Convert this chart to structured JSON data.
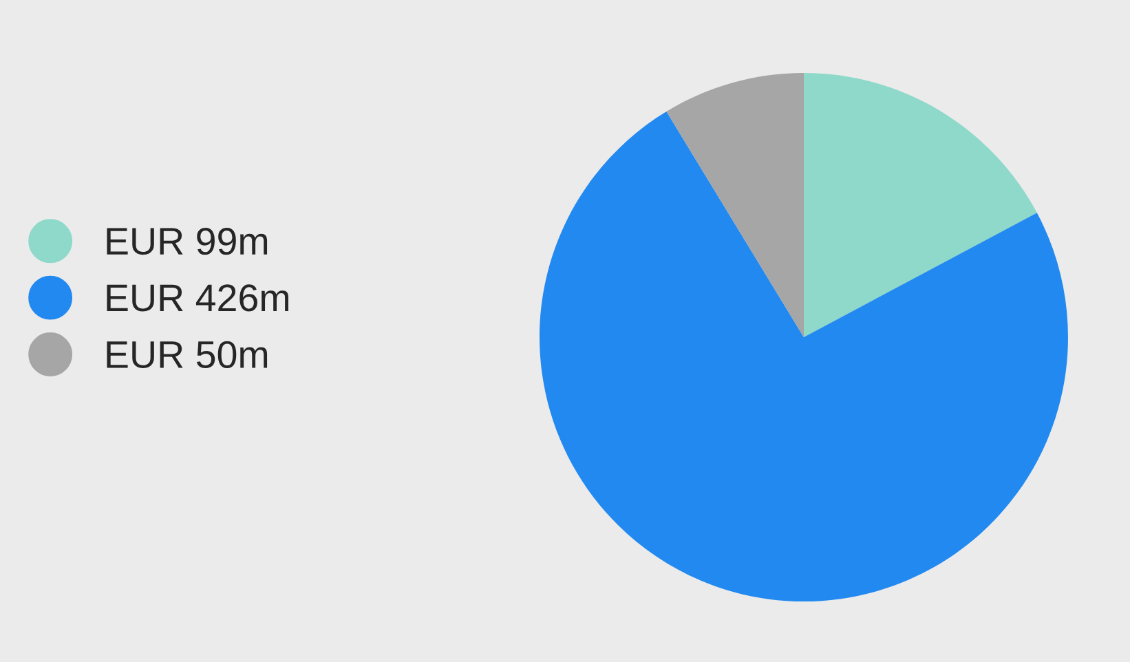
{
  "chart_data": {
    "type": "pie",
    "categories": [
      "EUR 99m",
      "EUR 426m",
      "EUR 50m"
    ],
    "values": [
      17.2,
      74.1,
      8.7
    ],
    "colors": [
      "#8ed9c9",
      "#2289f0",
      "#a6a6a6"
    ],
    "legend": "left"
  }
}
